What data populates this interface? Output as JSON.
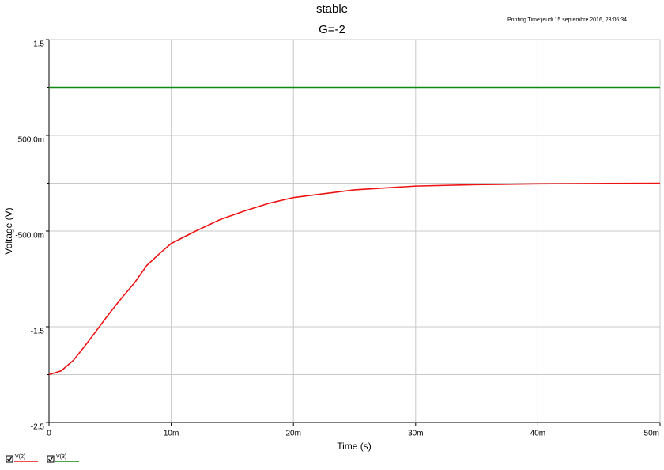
{
  "chart_data": {
    "type": "line",
    "title": "stable",
    "subtitle": "G=-2",
    "annotation": "Printing Time:jeudi 15 septembre 2016, 23:06:34",
    "x_label": "Time (s)",
    "y_label": "Voltage (V)",
    "x": [
      0,
      0.001,
      0.002,
      0.003,
      0.004,
      0.005,
      0.006,
      0.007,
      0.008,
      0.009,
      0.01,
      0.012,
      0.014,
      0.016,
      0.018,
      0.02,
      0.025,
      0.03,
      0.035,
      0.04,
      0.045,
      0.05
    ],
    "series": [
      {
        "name": "V(2)",
        "color": "#ee1111",
        "values": [
          -2.0,
          -1.96,
          -1.85,
          -1.69,
          -1.52,
          -1.35,
          -1.19,
          -1.04,
          -0.86,
          -0.74,
          -0.63,
          -0.5,
          -0.38,
          -0.29,
          -0.21,
          -0.15,
          -0.07,
          -0.03,
          -0.015,
          -0.007,
          -0.003,
          0
        ]
      },
      {
        "name": "V(3)",
        "color": "#118811",
        "values": [
          1,
          1,
          1,
          1,
          1,
          1,
          1,
          1,
          1,
          1,
          1,
          1,
          1,
          1,
          1,
          1,
          1,
          1,
          1,
          1,
          1,
          1
        ]
      }
    ],
    "xlim": [
      0,
      0.05
    ],
    "xticks": [
      0,
      {
        "value": 0.01,
        "label": "10m"
      },
      {
        "value": 0.02,
        "label": "20m"
      },
      {
        "value": 0.03,
        "label": "30m"
      },
      {
        "value": 0.04,
        "label": "40m"
      },
      {
        "value": 0.05,
        "label": "50m"
      }
    ],
    "ylim": [
      -2.5,
      1.5
    ],
    "yticks": [
      1.5,
      {
        "value": 0.5,
        "label": "500.0m"
      },
      {
        "value": -0.5,
        "label": "-500.0m"
      },
      -1.5,
      -2.5
    ],
    "minor_yticks": [
      1,
      0,
      -1,
      -2
    ],
    "grid": true
  }
}
